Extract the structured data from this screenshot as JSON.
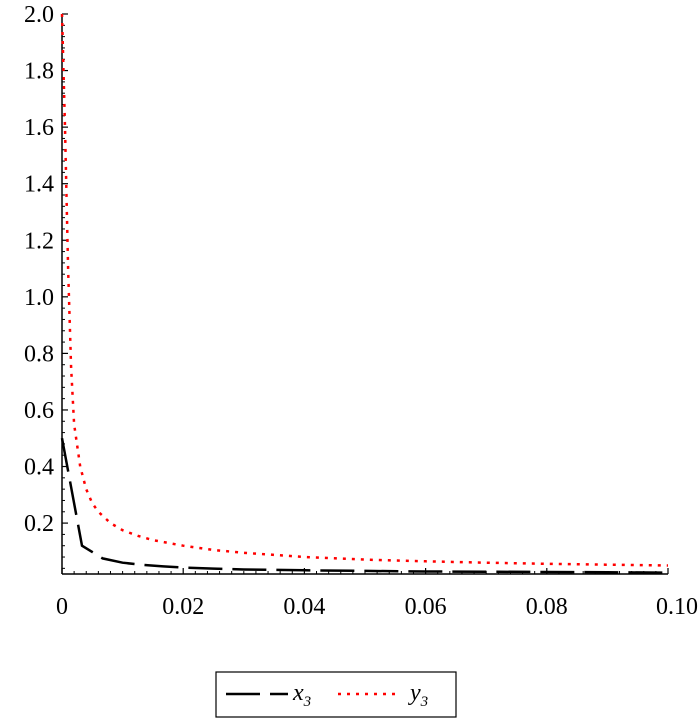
{
  "chart_data": {
    "type": "line",
    "title": "",
    "xlabel": "",
    "ylabel": "",
    "xlim": [
      0,
      0.1
    ],
    "ylim": [
      0.02,
      2.0
    ],
    "x_ticks": [
      0,
      0.02,
      0.04,
      0.06,
      0.08,
      0.1
    ],
    "x_tick_labels": [
      "0",
      "0.02",
      "0.04",
      "0.06",
      "0.08",
      "0.10"
    ],
    "y_ticks": [
      0.2,
      0.4,
      0.6,
      0.8,
      1.0,
      1.2,
      1.4,
      1.6,
      1.8,
      2.0
    ],
    "y_tick_labels": [
      "0.2",
      "0.4",
      "0.6",
      "0.8",
      "1.0",
      "1.2",
      "1.4",
      "1.6",
      "1.8",
      "2.0"
    ],
    "grid": false,
    "legend_position": "bottom-center",
    "series": [
      {
        "name": "x3",
        "label_base": "x",
        "label_sub": "3",
        "color": "#000000",
        "style": "dashed",
        "x": [
          0,
          0.0033,
          0.0067,
          0.01,
          0.0133,
          0.0167,
          0.02,
          0.025,
          0.03,
          0.04,
          0.05,
          0.06,
          0.07,
          0.08,
          0.09,
          0.1
        ],
        "y": [
          0.5,
          0.12,
          0.075,
          0.06,
          0.052,
          0.047,
          0.043,
          0.039,
          0.036,
          0.033,
          0.031,
          0.029,
          0.028,
          0.027,
          0.026,
          0.025
        ]
      },
      {
        "name": "y3",
        "label_base": "y",
        "label_sub": "3",
        "color": "#ff0000",
        "style": "dotted",
        "x": [
          0,
          0.0005,
          0.001,
          0.0015,
          0.002,
          0.003,
          0.004,
          0.005,
          0.006,
          0.008,
          0.01,
          0.0125,
          0.015,
          0.02,
          0.025,
          0.03,
          0.04,
          0.05,
          0.06,
          0.07,
          0.08,
          0.09,
          0.1
        ],
        "y": [
          2.0,
          1.6,
          1.1,
          0.75,
          0.55,
          0.4,
          0.32,
          0.27,
          0.24,
          0.2,
          0.175,
          0.155,
          0.14,
          0.12,
          0.105,
          0.095,
          0.08,
          0.071,
          0.065,
          0.06,
          0.056,
          0.053,
          0.05
        ]
      }
    ]
  }
}
